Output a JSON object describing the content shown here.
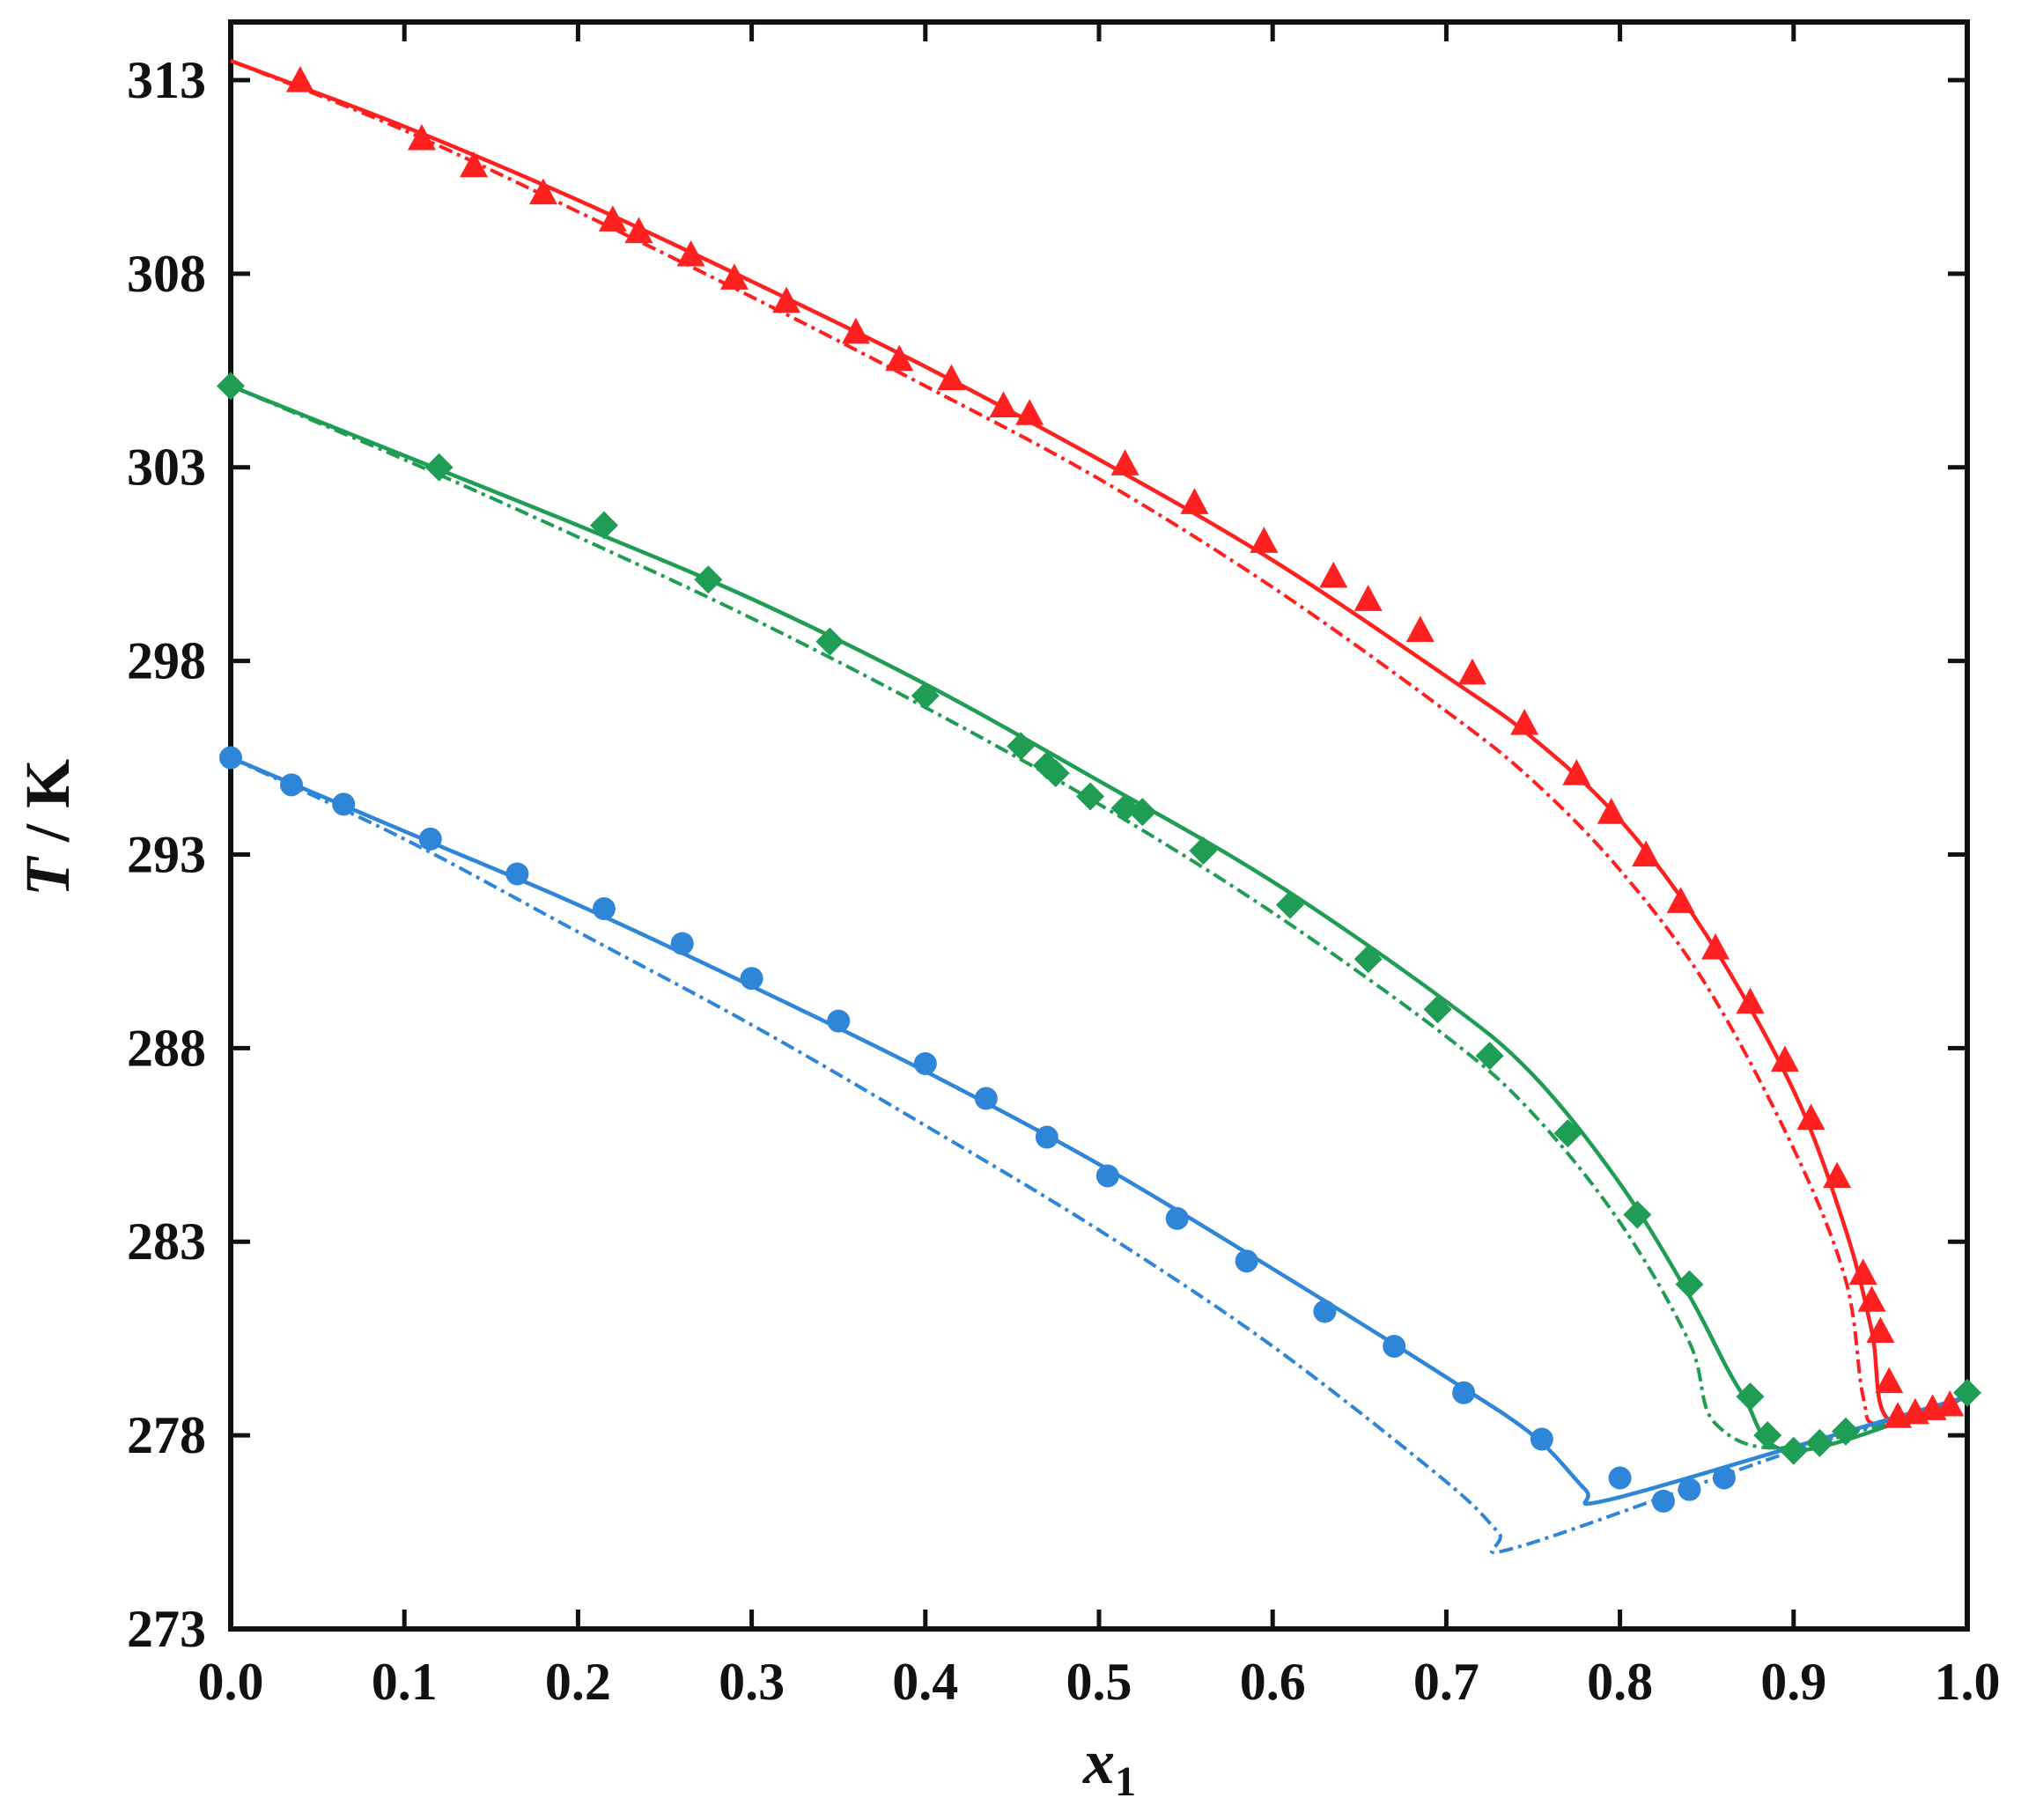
{
  "chart_data": {
    "type": "scatter",
    "xlabel": "x",
    "xlabel_sub": "1",
    "ylabel_var": "T",
    "ylabel_unit": " / K",
    "xlim": [
      0.0,
      1.0
    ],
    "ylim": [
      273,
      314.5
    ],
    "x_ticks": [
      0.0,
      0.1,
      0.2,
      0.3,
      0.4,
      0.5,
      0.6,
      0.7,
      0.8,
      0.9,
      1.0
    ],
    "x_tick_labels": [
      "0.0",
      "0.1",
      "0.2",
      "0.3",
      "0.4",
      "0.5",
      "0.6",
      "0.7",
      "0.8",
      "0.9",
      "1.0"
    ],
    "y_ticks": [
      273,
      278,
      283,
      288,
      293,
      298,
      303,
      308,
      313
    ],
    "y_tick_labels": [
      "273",
      "278",
      "283",
      "288",
      "293",
      "298",
      "303",
      "308",
      "313"
    ],
    "grid": false,
    "colors": {
      "red": "#ff2020",
      "green": "#1f9d55",
      "blue": "#2f86d8"
    },
    "series": [
      {
        "color": "#ff2020",
        "marker": "triangle",
        "points": [
          [
            0.04,
            313.0
          ],
          [
            0.11,
            311.5
          ],
          [
            0.14,
            310.8
          ],
          [
            0.18,
            310.1
          ],
          [
            0.22,
            309.4
          ],
          [
            0.235,
            309.1
          ],
          [
            0.265,
            308.5
          ],
          [
            0.29,
            307.9
          ],
          [
            0.32,
            307.3
          ],
          [
            0.36,
            306.5
          ],
          [
            0.385,
            305.8
          ],
          [
            0.415,
            305.3
          ],
          [
            0.445,
            304.6
          ],
          [
            0.46,
            304.4
          ],
          [
            0.515,
            303.1
          ],
          [
            0.555,
            302.1
          ],
          [
            0.595,
            301.1
          ],
          [
            0.635,
            300.2
          ],
          [
            0.655,
            299.6
          ],
          [
            0.685,
            298.8
          ],
          [
            0.715,
            297.7
          ],
          [
            0.745,
            296.4
          ],
          [
            0.775,
            295.1
          ],
          [
            0.795,
            294.1
          ],
          [
            0.815,
            293.0
          ],
          [
            0.835,
            291.8
          ],
          [
            0.855,
            290.6
          ],
          [
            0.875,
            289.2
          ],
          [
            0.895,
            287.7
          ],
          [
            0.91,
            286.2
          ],
          [
            0.925,
            284.7
          ],
          [
            0.94,
            282.2
          ],
          [
            0.945,
            281.5
          ],
          [
            0.95,
            280.7
          ],
          [
            0.955,
            279.4
          ],
          [
            0.96,
            278.5
          ],
          [
            0.97,
            278.6
          ],
          [
            0.98,
            278.7
          ],
          [
            0.99,
            278.8
          ]
        ],
        "fit_solid": [
          [
            0.0,
            313.5
          ],
          [
            0.1,
            311.8
          ],
          [
            0.2,
            309.9
          ],
          [
            0.3,
            307.8
          ],
          [
            0.4,
            305.6
          ],
          [
            0.5,
            303.2
          ],
          [
            0.6,
            300.6
          ],
          [
            0.7,
            297.6
          ],
          [
            0.75,
            296.0
          ],
          [
            0.8,
            293.9
          ],
          [
            0.85,
            290.9
          ],
          [
            0.9,
            286.9
          ],
          [
            0.93,
            283.3
          ],
          [
            0.945,
            280.7
          ],
          [
            0.955,
            278.4
          ],
          [
            1.0,
            279.0
          ]
        ],
        "fit_dashed": [
          [
            0.0,
            313.5
          ],
          [
            0.1,
            311.7
          ],
          [
            0.2,
            309.6
          ],
          [
            0.3,
            307.4
          ],
          [
            0.4,
            305.1
          ],
          [
            0.5,
            302.7
          ],
          [
            0.6,
            299.9
          ],
          [
            0.7,
            296.7
          ],
          [
            0.75,
            294.9
          ],
          [
            0.8,
            292.6
          ],
          [
            0.85,
            289.6
          ],
          [
            0.9,
            285.4
          ],
          [
            0.93,
            282.0
          ],
          [
            0.94,
            279.0
          ],
          [
            0.95,
            278.3
          ],
          [
            1.0,
            279.0
          ]
        ]
      },
      {
        "color": "#1f9d55",
        "marker": "diamond",
        "points": [
          [
            0.0,
            305.1
          ],
          [
            0.12,
            303.0
          ],
          [
            0.215,
            301.5
          ],
          [
            0.275,
            300.1
          ],
          [
            0.345,
            298.5
          ],
          [
            0.4,
            297.1
          ],
          [
            0.455,
            295.8
          ],
          [
            0.47,
            295.3
          ],
          [
            0.475,
            295.1
          ],
          [
            0.495,
            294.5
          ],
          [
            0.515,
            294.2
          ],
          [
            0.525,
            294.1
          ],
          [
            0.56,
            293.1
          ],
          [
            0.61,
            291.7
          ],
          [
            0.655,
            290.3
          ],
          [
            0.695,
            289.0
          ],
          [
            0.725,
            287.8
          ],
          [
            0.77,
            285.8
          ],
          [
            0.81,
            283.7
          ],
          [
            0.84,
            281.9
          ],
          [
            0.875,
            279.0
          ],
          [
            0.885,
            278.0
          ],
          [
            0.9,
            277.6
          ],
          [
            0.915,
            277.8
          ],
          [
            0.93,
            278.1
          ],
          [
            1.0,
            279.1
          ]
        ],
        "fit_solid": [
          [
            0.0,
            305.1
          ],
          [
            0.1,
            303.3
          ],
          [
            0.2,
            301.5
          ],
          [
            0.3,
            299.6
          ],
          [
            0.4,
            297.4
          ],
          [
            0.5,
            294.9
          ],
          [
            0.6,
            292.3
          ],
          [
            0.7,
            289.2
          ],
          [
            0.75,
            287.3
          ],
          [
            0.8,
            284.5
          ],
          [
            0.84,
            281.6
          ],
          [
            0.87,
            279.1
          ],
          [
            0.9,
            277.6
          ],
          [
            1.0,
            279.0
          ]
        ],
        "fit_dashed": [
          [
            0.0,
            305.1
          ],
          [
            0.1,
            303.2
          ],
          [
            0.2,
            301.2
          ],
          [
            0.3,
            299.1
          ],
          [
            0.4,
            296.8
          ],
          [
            0.5,
            294.3
          ],
          [
            0.6,
            291.5
          ],
          [
            0.7,
            288.3
          ],
          [
            0.75,
            286.3
          ],
          [
            0.8,
            283.5
          ],
          [
            0.84,
            280.4
          ],
          [
            0.855,
            278.3
          ],
          [
            0.9,
            277.7
          ],
          [
            1.0,
            279.0
          ]
        ]
      },
      {
        "color": "#2f86d8",
        "marker": "circle",
        "points": [
          [
            0.0,
            295.5
          ],
          [
            0.035,
            294.8
          ],
          [
            0.065,
            294.3
          ],
          [
            0.115,
            293.4
          ],
          [
            0.165,
            292.5
          ],
          [
            0.215,
            291.6
          ],
          [
            0.26,
            290.7
          ],
          [
            0.3,
            289.8
          ],
          [
            0.35,
            288.7
          ],
          [
            0.4,
            287.6
          ],
          [
            0.435,
            286.7
          ],
          [
            0.47,
            285.7
          ],
          [
            0.505,
            284.7
          ],
          [
            0.545,
            283.6
          ],
          [
            0.585,
            282.5
          ],
          [
            0.63,
            281.2
          ],
          [
            0.67,
            280.3
          ],
          [
            0.71,
            279.1
          ],
          [
            0.755,
            277.9
          ],
          [
            0.8,
            276.9
          ],
          [
            0.825,
            276.3
          ],
          [
            0.84,
            276.6
          ],
          [
            0.86,
            276.9
          ]
        ],
        "fit_solid": [
          [
            0.0,
            295.5
          ],
          [
            0.1,
            293.6
          ],
          [
            0.2,
            291.7
          ],
          [
            0.3,
            289.6
          ],
          [
            0.4,
            287.4
          ],
          [
            0.5,
            285.0
          ],
          [
            0.6,
            282.3
          ],
          [
            0.7,
            279.5
          ],
          [
            0.75,
            278.0
          ],
          [
            0.78,
            276.6
          ],
          [
            0.79,
            276.3
          ],
          [
            0.9,
            277.7
          ],
          [
            1.0,
            279.0
          ]
        ],
        "fit_dashed": [
          [
            0.0,
            295.5
          ],
          [
            0.1,
            293.4
          ],
          [
            0.2,
            291.0
          ],
          [
            0.3,
            288.6
          ],
          [
            0.4,
            286.0
          ],
          [
            0.5,
            283.3
          ],
          [
            0.6,
            280.3
          ],
          [
            0.7,
            276.8
          ],
          [
            0.73,
            275.5
          ],
          [
            0.74,
            275.1
          ],
          [
            0.9,
            277.6
          ],
          [
            1.0,
            279.0
          ]
        ]
      }
    ]
  }
}
